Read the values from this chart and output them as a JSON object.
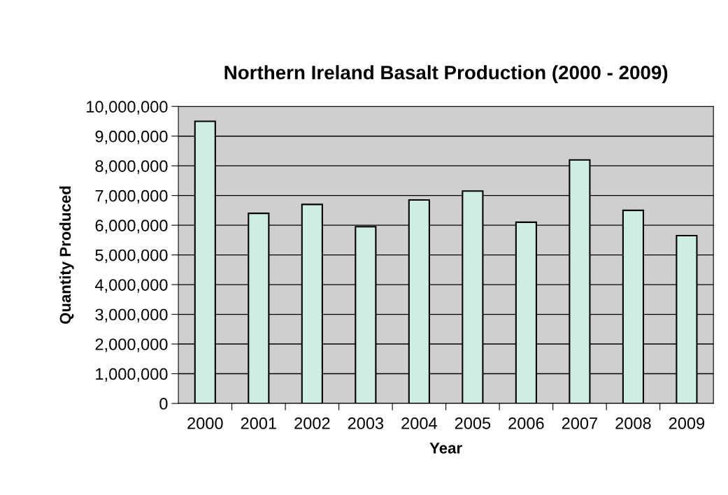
{
  "chart_data": {
    "type": "bar",
    "title": "Northern Ireland Basalt Production (2000 - 2009)",
    "xlabel": "Year",
    "ylabel": "Quantity Produced",
    "categories": [
      "2000",
      "2001",
      "2002",
      "2003",
      "2004",
      "2005",
      "2006",
      "2007",
      "2008",
      "2009"
    ],
    "values": [
      9500000,
      6400000,
      6700000,
      5950000,
      6850000,
      7150000,
      6100000,
      8200000,
      6500000,
      5650000
    ],
    "color": "#cdeee0",
    "ylim": [
      0,
      10000000
    ],
    "yticks": [
      0,
      {
        "value": 1000000,
        "label": "1,000,000"
      },
      {
        "value": 2000000,
        "label": "2,000,000"
      },
      {
        "value": 3000000,
        "label": "3,000,000"
      },
      {
        "value": 4000000,
        "label": "4,000,000"
      },
      {
        "value": 5000000,
        "label": "5,000,000"
      },
      {
        "value": 6000000,
        "label": "6,000,000"
      },
      {
        "value": 7000000,
        "label": "7,000,000"
      },
      {
        "value": 8000000,
        "label": "8,000,000"
      },
      {
        "value": 9000000,
        "label": "9,000,000"
      },
      {
        "value": 10000000,
        "label": "10,000,000"
      }
    ],
    "grid": "y",
    "legend": false
  }
}
